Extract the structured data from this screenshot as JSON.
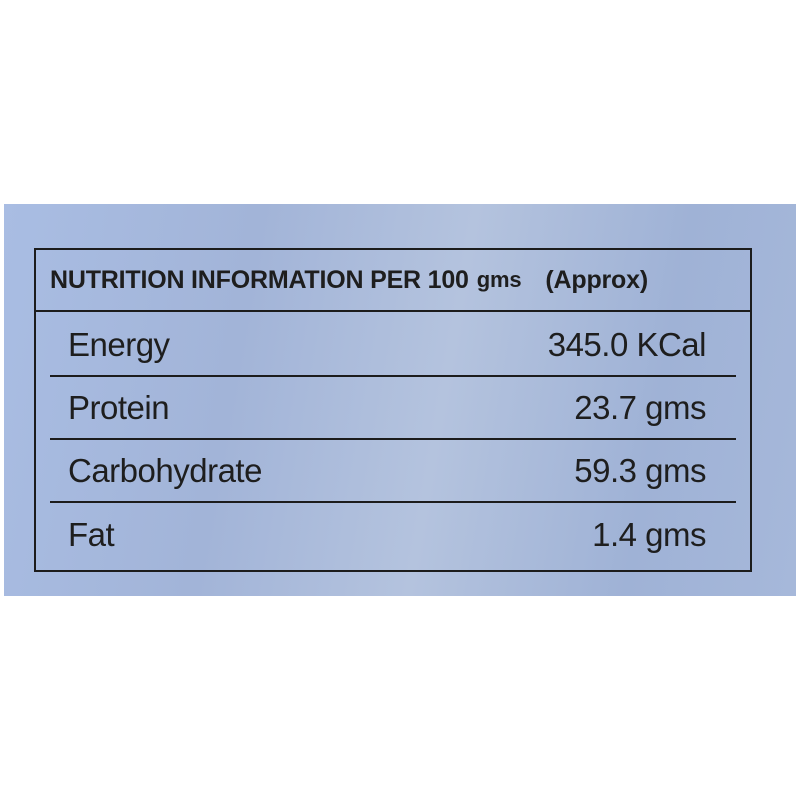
{
  "header": {
    "title": "NUTRITION INFORMATION PER 100",
    "unit": "gms",
    "note": "(Approx)"
  },
  "rows": [
    {
      "label": "Energy",
      "value": "345.0 KCal"
    },
    {
      "label": "Protein",
      "value": "23.7 gms"
    },
    {
      "label": "Carbohydrate",
      "value": "59.3 gms"
    },
    {
      "label": "Fat",
      "value": "1.4 gms"
    }
  ]
}
